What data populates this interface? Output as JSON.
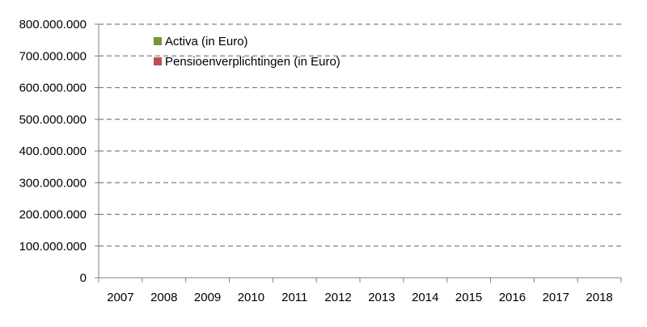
{
  "chart_data": {
    "type": "bar",
    "title": "",
    "xlabel": "",
    "ylabel": "",
    "categories": [
      "2007",
      "2008",
      "2009",
      "2010",
      "2011",
      "2012",
      "2013",
      "2014",
      "2015",
      "2016",
      "2017",
      "2018"
    ],
    "ylim": [
      0,
      800000000
    ],
    "yticks": [
      0,
      100000000,
      200000000,
      300000000,
      400000000,
      500000000,
      600000000,
      700000000,
      800000000
    ],
    "ytick_labels": [
      "0",
      "100.000.000",
      "200.000.000",
      "300.000.000",
      "400.000.000",
      "500.000.000",
      "600.000.000",
      "700.000.000",
      "800.000.000"
    ],
    "grid": true,
    "grid_style": "dashed",
    "legend_position": "top-left",
    "series": [
      {
        "name": "Activa (in Euro)",
        "color": "#77933c",
        "values": [
          null,
          null,
          null,
          null,
          null,
          null,
          null,
          null,
          null,
          null,
          null,
          null
        ]
      },
      {
        "name": "Pensioenverplichtingen (in Euro)",
        "color": "#c0504d",
        "values": [
          null,
          null,
          null,
          null,
          null,
          null,
          null,
          null,
          null,
          null,
          null,
          null
        ]
      }
    ],
    "colors": {
      "axis": "#808080",
      "grid": "#808080",
      "text": "#000000"
    }
  }
}
